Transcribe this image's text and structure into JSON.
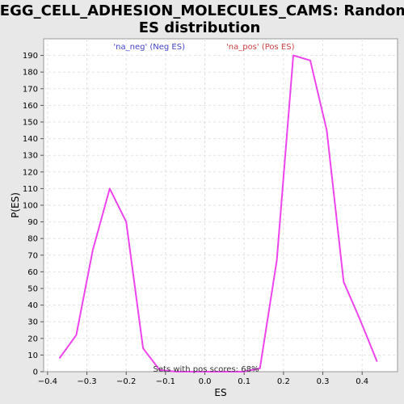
{
  "chart_data": {
    "type": "line",
    "title_lines": [
      "KEGG_CELL_ADHESION_MOLECULES_CAMS: Random",
      "ES distribution"
    ],
    "xlabel": "ES",
    "ylabel": "P(ES)",
    "xlim": [
      -0.41,
      0.49
    ],
    "ylim": [
      0,
      200
    ],
    "xticks": [
      -0.4,
      -0.3,
      -0.2,
      -0.1,
      0.0,
      0.1,
      0.2,
      0.3,
      0.4
    ],
    "xtick_labels": [
      "−0.4",
      "−0.3",
      "−0.2",
      "−0.1",
      "0.0",
      "0.1",
      "0.2",
      "0.3",
      "0.4"
    ],
    "yticks": [
      0,
      10,
      20,
      30,
      40,
      50,
      60,
      70,
      80,
      90,
      100,
      110,
      120,
      130,
      140,
      150,
      160,
      170,
      180,
      190
    ],
    "grid": true,
    "legend": [
      {
        "label": "'na_neg' (Neg ES)",
        "color": "#4444cc"
      },
      {
        "label": "'na_pos' (Pos ES)",
        "color": "#cc4444"
      }
    ],
    "annotation": "Sets with pos scores: 68%",
    "series": [
      {
        "color": "#ee44ee",
        "x": [
          -0.37,
          -0.327,
          -0.285,
          -0.242,
          -0.2,
          -0.157,
          -0.115,
          -0.072,
          -0.03,
          0.013,
          0.055,
          0.098,
          0.14,
          0.183,
          0.225,
          0.268,
          0.31,
          0.353,
          0.395,
          0.438
        ],
        "y": [
          8,
          22,
          73,
          110,
          90,
          14,
          1,
          0,
          0,
          0,
          0,
          0,
          2,
          67,
          190,
          187,
          145,
          54,
          31,
          6
        ]
      }
    ]
  }
}
